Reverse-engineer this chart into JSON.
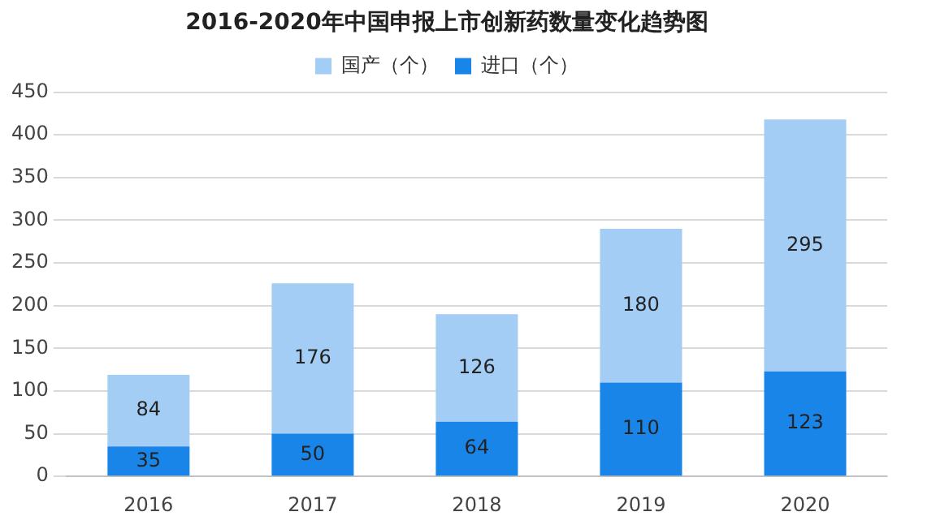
{
  "chart_data": {
    "type": "bar",
    "title": "2016-2020年中国申报上市创新药数量变化趋势图",
    "categories": [
      "2016",
      "2017",
      "2018",
      "2019",
      "2020"
    ],
    "stacked": true,
    "series": [
      {
        "name": "进口（个）",
        "color": "#1a85e8",
        "values": [
          35,
          50,
          64,
          110,
          123
        ]
      },
      {
        "name": "国产（个）",
        "color": "#a3cdf5",
        "values": [
          84,
          176,
          126,
          180,
          295
        ]
      }
    ],
    "ylim": [
      0,
      450
    ],
    "yticks": [
      0,
      50,
      100,
      150,
      200,
      250,
      300,
      350,
      400,
      450
    ],
    "grid": "y",
    "legend": "top",
    "data_labels": true
  }
}
